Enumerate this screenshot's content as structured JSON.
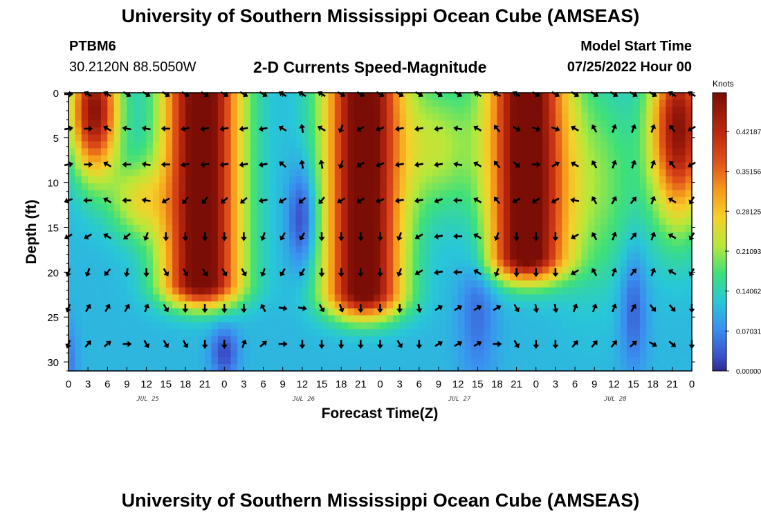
{
  "page": {
    "title": "University of Southern Mississippi Ocean Cube (AMSEAS)",
    "footer_title": "University of Southern Mississippi Ocean Cube (AMSEAS)",
    "station_name": "PTBM6",
    "station_coords": "30.2120N  88.5050W",
    "plot_title": "2-D Currents Speed-Magnitude",
    "model_start_label": "Model Start Time",
    "model_start_value": "07/25/2022 Hour 00"
  },
  "chart_data": {
    "type": "heatmap",
    "title": "2-D Currents Speed-Magnitude",
    "xlabel": "Forecast Time(Z)",
    "ylabel": "Depth (ft)",
    "x_ticks": [
      "0",
      "3",
      "6",
      "9",
      "12",
      "15",
      "18",
      "21",
      "0",
      "3",
      "6",
      "9",
      "12",
      "15",
      "18",
      "21",
      "0",
      "3",
      "6",
      "9",
      "12",
      "15",
      "18",
      "21",
      "0",
      "3",
      "6",
      "9",
      "12",
      "15",
      "18",
      "21",
      "0"
    ],
    "date_labels": [
      {
        "label": "JUL 25",
        "hour": 12
      },
      {
        "label": "JUL 26",
        "hour": 36
      },
      {
        "label": "JUL 27",
        "hour": 60
      },
      {
        "label": "JUL 28",
        "hour": 84
      }
    ],
    "xlim_hours": [
      0,
      96
    ],
    "ylim_depth_ft": [
      0,
      31
    ],
    "y_ticks": [
      "0",
      "5",
      "10",
      "15",
      "20",
      "25",
      "30"
    ],
    "y_tick_values": [
      0,
      5,
      10,
      15,
      20,
      25,
      30
    ],
    "colorbar": {
      "label": "Knots",
      "ticks": [
        "0.42187",
        "0.35156",
        "0.28125",
        "0.21093",
        "0.14062",
        "0.07031",
        "0.00000"
      ],
      "tick_values": [
        0.42187,
        0.35156,
        0.28125,
        0.21093,
        0.14062,
        0.07031,
        0.0
      ],
      "range": [
        0,
        0.49
      ]
    },
    "arrow_depths_ft": [
      0,
      4,
      8,
      12,
      16,
      20,
      24,
      28
    ],
    "arrow_hours": [
      0,
      3,
      6,
      9,
      12,
      15,
      18,
      21,
      24,
      27,
      30,
      33,
      36,
      39,
      42,
      45,
      48,
      51,
      54,
      57,
      60,
      63,
      66,
      69,
      72,
      75,
      78,
      81,
      84,
      87,
      90,
      93,
      96
    ],
    "arrow_directions_deg": [
      [
        90,
        300,
        300,
        120,
        120,
        120,
        120,
        120,
        120,
        120,
        120,
        300,
        300,
        300,
        120,
        120,
        120,
        120,
        120,
        120,
        120,
        300,
        300,
        300,
        120,
        120,
        120,
        120,
        120,
        120,
        120,
        300,
        300
      ],
      [
        80,
        90,
        300,
        280,
        280,
        270,
        260,
        260,
        260,
        260,
        260,
        300,
        350,
        300,
        200,
        240,
        250,
        260,
        260,
        260,
        280,
        300,
        320,
        120,
        110,
        110,
        300,
        330,
        20,
        20,
        20,
        320,
        240
      ],
      [
        80,
        90,
        300,
        270,
        280,
        270,
        260,
        260,
        260,
        260,
        260,
        310,
        350,
        350,
        200,
        240,
        250,
        260,
        260,
        260,
        280,
        300,
        320,
        130,
        90,
        60,
        300,
        330,
        20,
        20,
        20,
        320,
        240
      ],
      [
        250,
        270,
        300,
        270,
        280,
        240,
        220,
        220,
        230,
        230,
        260,
        240,
        230,
        220,
        240,
        240,
        250,
        260,
        260,
        250,
        270,
        300,
        320,
        240,
        240,
        240,
        280,
        330,
        30,
        40,
        20,
        300,
        210
      ],
      [
        240,
        240,
        300,
        230,
        200,
        180,
        180,
        180,
        180,
        180,
        200,
        210,
        210,
        180,
        180,
        180,
        180,
        200,
        240,
        260,
        270,
        300,
        200,
        180,
        180,
        180,
        240,
        330,
        20,
        40,
        20,
        300,
        210
      ],
      [
        200,
        200,
        220,
        190,
        180,
        150,
        150,
        150,
        150,
        150,
        200,
        210,
        210,
        180,
        180,
        180,
        180,
        200,
        240,
        260,
        270,
        300,
        200,
        180,
        180,
        180,
        240,
        330,
        20,
        40,
        20,
        300,
        210
      ],
      [
        200,
        30,
        30,
        30,
        20,
        150,
        180,
        180,
        180,
        180,
        330,
        100,
        100,
        150,
        160,
        180,
        180,
        180,
        170,
        60,
        60,
        60,
        60,
        150,
        170,
        170,
        20,
        20,
        20,
        30,
        140,
        140,
        180
      ],
      [
        200,
        40,
        50,
        90,
        150,
        150,
        150,
        180,
        180,
        20,
        50,
        90,
        180,
        180,
        180,
        180,
        180,
        150,
        180,
        60,
        60,
        60,
        90,
        150,
        180,
        180,
        40,
        40,
        40,
        50,
        120,
        130,
        180
      ]
    ]
  }
}
